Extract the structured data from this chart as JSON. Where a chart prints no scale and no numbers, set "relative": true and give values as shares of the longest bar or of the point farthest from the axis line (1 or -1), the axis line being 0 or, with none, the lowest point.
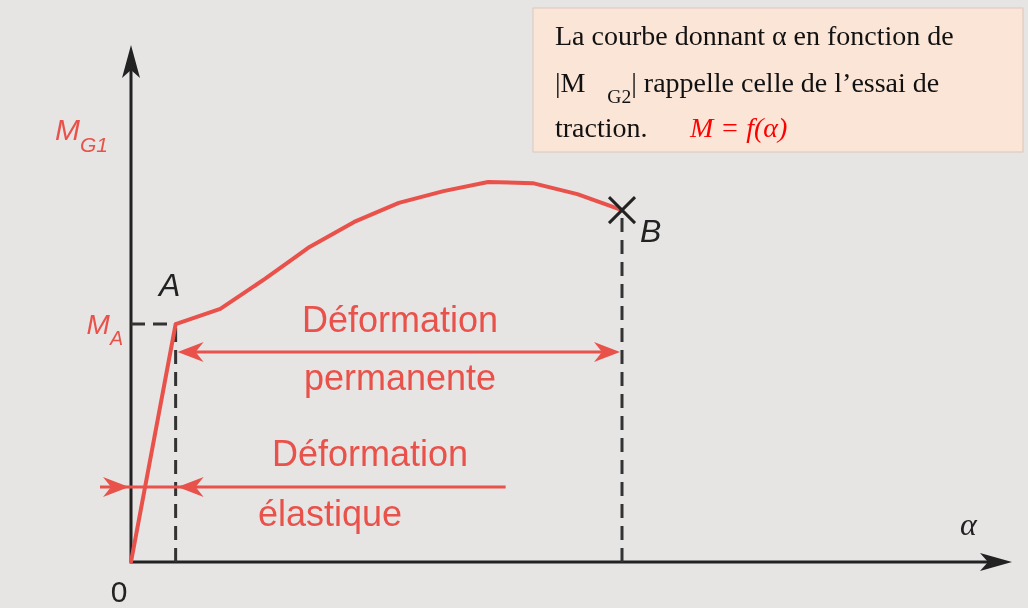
{
  "chart_data": {
    "type": "line",
    "relative": true,
    "ylabel": "M$_{G1}$",
    "categories": [
      null,
      null,
      null,
      null,
      null,
      null,
      null,
      null,
      null,
      null,
      null,
      null
    ],
    "series": [
      {
        "color": "#e8524a",
        "values": [
          0,
          0.626,
          0.666,
          0.745,
          0.829,
          0.895,
          0.945,
          0.976,
          1,
          0.997,
          0.968,
          0.926
        ]
      }
    ],
    "ref_lines": [
      {
        "axis": "y",
        "value": 0.626,
        "label": "M$_{A}$",
        "line_style": "dashed",
        "color": "#333333"
      }
    ],
    "annotations": [
      "A",
      "B",
      "0",
      "Déformation permanente",
      "Déformation élastique",
      "La courbe donnant α en fonction de |M⃗$_{G2}$| rappelle celle de l’essai de traction.",
      "M = f(α)",
      "α"
    ],
    "tick_labels": false,
    "legend": false
  }
}
